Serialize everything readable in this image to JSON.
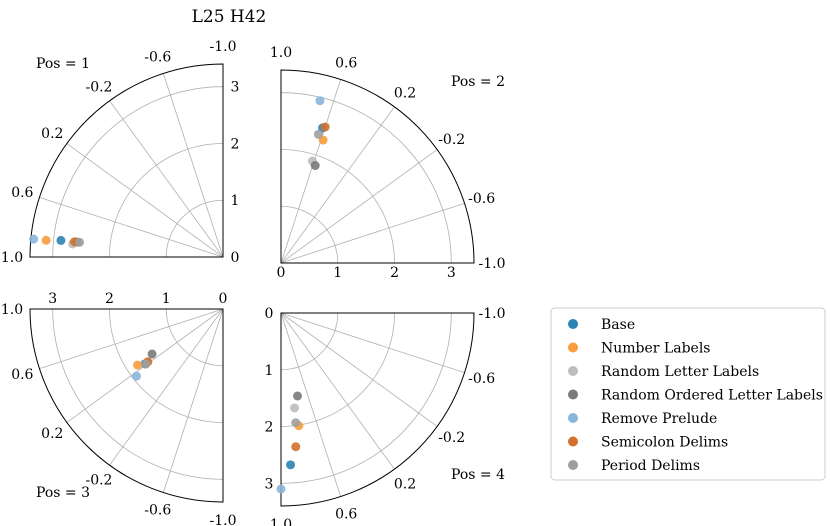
{
  "chart_data": {
    "type": "scatter",
    "projection": "polar-quarter",
    "title": "L25 H42",
    "radial_ticks": [
      "0",
      "1",
      "2",
      "3"
    ],
    "radial_range": [
      0,
      3.4
    ],
    "angle_ticks": [
      "-1.0",
      "-0.6",
      "-0.2",
      "0.2",
      "0.6",
      "1.0"
    ],
    "angle_range": [
      -1.0,
      1.0
    ],
    "grid": true,
    "legend_position": "right",
    "series": [
      {
        "name": "Base",
        "color": "#2b83b4"
      },
      {
        "name": "Number Labels",
        "color": "#f99c3e"
      },
      {
        "name": "Random Letter Labels",
        "color": "#bdbdbd"
      },
      {
        "name": "Random Ordered Letter Labels",
        "color": "#7a7a7a"
      },
      {
        "name": "Remove Prelude",
        "color": "#87b5dc"
      },
      {
        "name": "Semicolon Delims",
        "color": "#d2712c"
      },
      {
        "name": "Period Delims",
        "color": "#9e9e9e"
      }
    ],
    "panels": [
      {
        "label": "Pos = 1",
        "points": [
          {
            "series": "Base",
            "angle": 0.87,
            "r": 2.87
          },
          {
            "series": "Number Labels",
            "angle": 0.88,
            "r": 3.13
          },
          {
            "series": "Random Letter Labels",
            "angle": 0.89,
            "r": 2.66
          },
          {
            "series": "Random Ordered Letter Labels",
            "angle": 0.87,
            "r": 2.58
          },
          {
            "series": "Remove Prelude",
            "angle": 0.88,
            "r": 3.35
          },
          {
            "series": "Semicolon Delims",
            "angle": 0.87,
            "r": 2.63
          },
          {
            "series": "Period Delims",
            "angle": 0.87,
            "r": 2.54
          }
        ]
      },
      {
        "label": "Pos = 2",
        "points": [
          {
            "series": "Base",
            "angle": 0.62,
            "r": 2.49
          },
          {
            "series": "Number Labels",
            "angle": 0.58,
            "r": 2.29
          },
          {
            "series": "Random Letter Labels",
            "angle": 0.62,
            "r": 1.88
          },
          {
            "series": "Random Ordered Letter Labels",
            "angle": 0.57,
            "r": 1.82
          },
          {
            "series": "Remove Prelude",
            "angle": 0.7,
            "r": 2.94
          },
          {
            "series": "Semicolon Delims",
            "angle": 0.6,
            "r": 2.52
          },
          {
            "series": "Period Delims",
            "angle": 0.64,
            "r": 2.36
          }
        ]
      },
      {
        "label": "Pos = 3",
        "points": [
          {
            "series": "Base",
            "angle": 0.22,
            "r": 1.68
          },
          {
            "series": "Number Labels",
            "angle": 0.26,
            "r": 1.8
          },
          {
            "series": "Random Letter Labels",
            "angle": 0.22,
            "r": 1.62
          },
          {
            "series": "Random Ordered Letter Labels",
            "angle": 0.28,
            "r": 1.48
          },
          {
            "series": "Remove Prelude",
            "angle": 0.16,
            "r": 1.93
          },
          {
            "series": "Semicolon Delims",
            "angle": 0.22,
            "r": 1.62
          },
          {
            "series": "Period Delims",
            "angle": 0.21,
            "r": 1.67
          }
        ]
      },
      {
        "label": "Pos = 4",
        "points": [
          {
            "series": "Base",
            "angle": 0.92,
            "r": 2.68
          },
          {
            "series": "Number Labels",
            "angle": 0.8,
            "r": 2.01
          },
          {
            "series": "Random Letter Labels",
            "angle": 0.82,
            "r": 1.69
          },
          {
            "series": "Random Ordered Letter Labels",
            "angle": 0.75,
            "r": 1.49
          },
          {
            "series": "Remove Prelude",
            "angle": 1.0,
            "r": 3.1
          },
          {
            "series": "Semicolon Delims",
            "angle": 0.86,
            "r": 2.37
          },
          {
            "series": "Period Delims",
            "angle": 0.83,
            "r": 1.95
          }
        ]
      }
    ]
  }
}
